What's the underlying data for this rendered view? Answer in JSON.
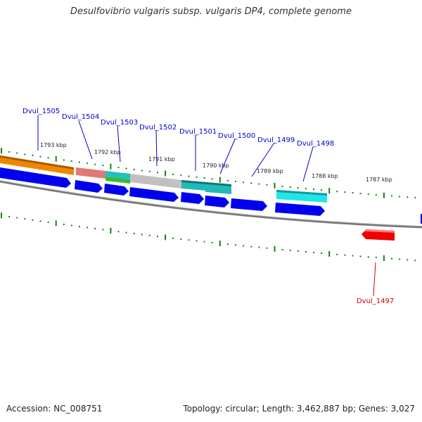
{
  "title": "Desulfovibrio vulgaris subsp. vulgaris DP4, complete genome",
  "footer": {
    "accession": "Accession: NC_008751",
    "summary": "Topology: circular; Length: 3,462,887 bp; Genes: 3,027"
  },
  "colors": {
    "label_blue": "#0000cc",
    "label_red": "#cc0000",
    "backbone": "#777777",
    "tick_green": "#1a7a1a",
    "cds_blue": "#0000ee",
    "cds_red": "#ee0000"
  },
  "ticks": [
    "1793 kbp",
    "1792 kbp",
    "1791 kbp",
    "1790 kbp",
    "1789 kbp",
    "1788 kbp",
    "1787 kbp"
  ],
  "genes": [
    {
      "label": "Dvul_1505",
      "strand": "+",
      "color": "#ee8800"
    },
    {
      "label": "Dvul_1504",
      "strand": "+",
      "color": "#e07070"
    },
    {
      "label": "Dvul_1503",
      "strand": "+",
      "color": "#22b8b8"
    },
    {
      "label": "Dvul_1502",
      "strand": "+",
      "color": "#bbbbbb"
    },
    {
      "label": "Dvul_1501",
      "strand": "+",
      "color": "#22b8b8"
    },
    {
      "label": "Dvul_1500",
      "strand": "+",
      "color": "#22b8b8"
    },
    {
      "label": "Dvul_1499",
      "strand": "+",
      "color": "#ffffff"
    },
    {
      "label": "Dvul_1498",
      "strand": "+",
      "color": "#22e0e0"
    },
    {
      "label": "Dvul_1497",
      "strand": "-",
      "color": "#ee0000"
    }
  ]
}
